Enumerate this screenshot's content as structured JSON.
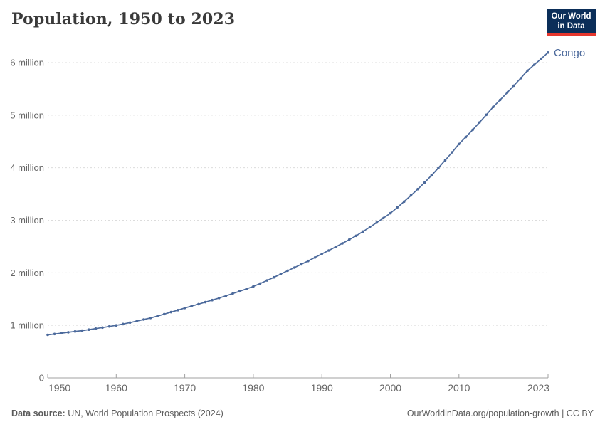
{
  "header": {
    "title": "Population, 1950 to 2023",
    "logo": {
      "line1": "Our World",
      "line2": "in Data"
    }
  },
  "entity_label": "Congo",
  "colors": {
    "series": "#4c6a9c",
    "grid": "#dcdcdc",
    "axis": "#a1a1a1",
    "tick_text": "#666666",
    "title_text": "#3a3a3a",
    "logo_bg": "#0b2e59",
    "logo_bar": "#e6372e"
  },
  "chart_data": {
    "type": "line",
    "title": "Population, 1950 to 2023",
    "xlabel": "",
    "ylabel": "",
    "grid": "horizontal-dashed",
    "legend_position": "end-of-line",
    "xlim": [
      1950,
      2023
    ],
    "ylim": [
      0,
      6.3
    ],
    "x_ticks": [
      1950,
      1960,
      1970,
      1980,
      1990,
      2000,
      2010,
      2023
    ],
    "y_ticks": [
      {
        "value": 0,
        "label": "0"
      },
      {
        "value": 1,
        "label": "1 million"
      },
      {
        "value": 2,
        "label": "2 million"
      },
      {
        "value": 3,
        "label": "3 million"
      },
      {
        "value": 4,
        "label": "4 million"
      },
      {
        "value": 5,
        "label": "5 million"
      },
      {
        "value": 6,
        "label": "6 million"
      }
    ],
    "start_year": 1950,
    "unit": "million people",
    "series": [
      {
        "name": "Congo",
        "values": [
          0.82,
          0.836,
          0.852,
          0.868,
          0.884,
          0.9,
          0.919,
          0.938,
          0.958,
          0.979,
          1.0,
          1.026,
          1.053,
          1.081,
          1.11,
          1.14,
          1.176,
          1.213,
          1.251,
          1.29,
          1.33,
          1.366,
          1.403,
          1.441,
          1.48,
          1.52,
          1.562,
          1.605,
          1.649,
          1.694,
          1.74,
          1.796,
          1.854,
          1.914,
          1.976,
          2.04,
          2.1,
          2.162,
          2.226,
          2.292,
          2.36,
          2.425,
          2.492,
          2.561,
          2.632,
          2.705,
          2.786,
          2.869,
          2.955,
          3.043,
          3.134,
          3.243,
          3.356,
          3.473,
          3.594,
          3.719,
          3.855,
          3.996,
          4.142,
          4.294,
          4.451,
          4.584,
          4.721,
          4.862,
          5.008,
          5.158,
          5.289,
          5.423,
          5.561,
          5.702,
          5.847,
          5.96,
          6.075,
          6.192
        ]
      }
    ]
  },
  "footer": {
    "source_label": "Data source:",
    "source_text": " UN, World Population Prospects (2024)",
    "credits": "OurWorldinData.org/population-growth | CC BY"
  }
}
